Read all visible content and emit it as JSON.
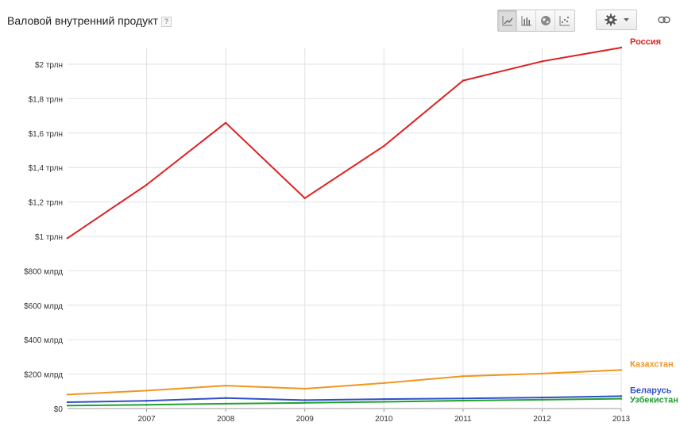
{
  "header": {
    "title": "Валовой внутренний продукт",
    "help": "?",
    "chart_type_buttons": [
      {
        "icon": "line-chart-icon",
        "active": true
      },
      {
        "icon": "bar-chart-icon",
        "active": false
      },
      {
        "icon": "globe-map-icon",
        "active": false
      },
      {
        "icon": "scatter-chart-icon",
        "active": false
      }
    ],
    "settings_icon": "gear-icon",
    "link_icon": "link-icon"
  },
  "chart_data": {
    "type": "line",
    "title": "Валовой внутренний продукт",
    "x": [
      2006,
      2007,
      2008,
      2009,
      2010,
      2011,
      2012,
      2013
    ],
    "x_tick_labels": [
      "2007",
      "2008",
      "2009",
      "2010",
      "2011",
      "2012",
      "2013"
    ],
    "y_tick_labels": [
      "$0",
      "$200 млрд",
      "$400 млрд",
      "$600 млрд",
      "$800 млрд",
      "$1 трлн",
      "$1,2 трлн",
      "$1,4 трлн",
      "$1,6 трлн",
      "$1,8 трлн",
      "$2 трлн"
    ],
    "ylim": [
      0,
      2000
    ],
    "y_unit": "billion USD",
    "grid": true,
    "legend": "inline-right",
    "series": [
      {
        "name": "Россия",
        "color": "#dc2020",
        "values": [
          990,
          1300,
          1660,
          1222,
          1525,
          1905,
          2017,
          2097
        ]
      },
      {
        "name": "Казахстан",
        "color": "#f0961e",
        "values": [
          81,
          104,
          133,
          115,
          148,
          188,
          203,
          224
        ]
      },
      {
        "name": "Беларусь",
        "color": "#3050c8",
        "values": [
          37,
          45,
          61,
          49,
          55,
          59,
          64,
          72
        ]
      },
      {
        "name": "Узбекистан",
        "color": "#22a032",
        "values": [
          17,
          22,
          28,
          33,
          39,
          46,
          51,
          57
        ]
      }
    ]
  }
}
